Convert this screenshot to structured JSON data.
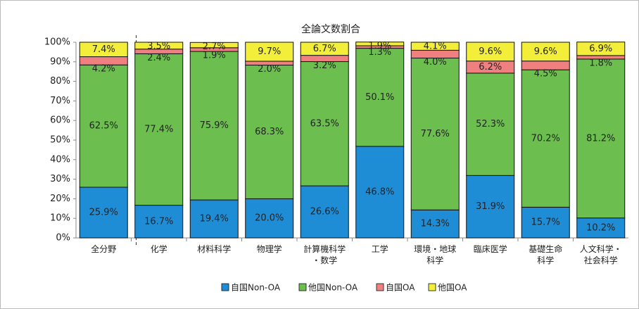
{
  "chart_data": {
    "type": "stacked_bar",
    "title": "全論文数割合",
    "categories": [
      "全分野",
      "化学",
      "材料科学",
      "物理学",
      "計算機科学\n・数学",
      "工学",
      "環境・地球\n科学",
      "臨床医学",
      "基礎生命\n科学",
      "人文科学・\n社会科学"
    ],
    "series": [
      {
        "name": "自国Non-OA",
        "color": "#1f8dd6",
        "values": [
          25.9,
          16.7,
          19.4,
          20.0,
          26.6,
          46.8,
          14.3,
          31.9,
          15.7,
          10.2
        ],
        "value_labels": [
          "25.9%",
          "16.7%",
          "19.4%",
          "20.0%",
          "26.6%",
          "46.8%",
          "14.3%",
          "31.9%",
          "15.7%",
          "10.2%"
        ]
      },
      {
        "name": "他国Non-OA",
        "color": "#6cbf4f",
        "values": [
          62.5,
          77.4,
          75.9,
          68.3,
          63.5,
          50.1,
          77.6,
          52.3,
          70.2,
          81.2
        ],
        "value_labels": [
          "62.5%",
          "77.4%",
          "75.9%",
          "68.3%",
          "63.5%",
          "50.1%",
          "77.6%",
          "52.3%",
          "70.2%",
          "81.2%"
        ]
      },
      {
        "name": "自国OA",
        "color": "#f08080",
        "values": [
          4.2,
          2.4,
          1.9,
          2.0,
          3.2,
          1.3,
          4.0,
          6.2,
          4.5,
          1.8
        ],
        "value_labels": [
          "4.2%",
          "2.4%",
          "1.9%",
          "2.0%",
          "3.2%",
          "1.3%",
          "4.0%",
          "6.2%",
          "4.5%",
          "1.8%"
        ]
      },
      {
        "name": "他国OA",
        "color": "#f3ee3a",
        "values": [
          7.4,
          3.5,
          2.7,
          9.7,
          6.7,
          1.9,
          4.1,
          9.6,
          9.6,
          6.9
        ],
        "value_labels": [
          "7.4%",
          "3.5%",
          "2.7%",
          "9.7%",
          "6.7%",
          "1.9%",
          "4.1%",
          "9.6%",
          "9.6%",
          "6.9%"
        ]
      }
    ],
    "ylim": [
      0,
      100
    ],
    "yticks": [
      {
        "value": 0,
        "label": "0%"
      },
      {
        "value": 10,
        "label": "10%"
      },
      {
        "value": 20,
        "label": "20%"
      },
      {
        "value": 30,
        "label": "30%"
      },
      {
        "value": 40,
        "label": "40%"
      },
      {
        "value": 50,
        "label": "50%"
      },
      {
        "value": 60,
        "label": "60%"
      },
      {
        "value": 70,
        "label": "70%"
      },
      {
        "value": 80,
        "label": "80%"
      },
      {
        "value": 90,
        "label": "90%"
      },
      {
        "value": 100,
        "label": "100%"
      }
    ],
    "grid": false,
    "legend": "bottom"
  }
}
